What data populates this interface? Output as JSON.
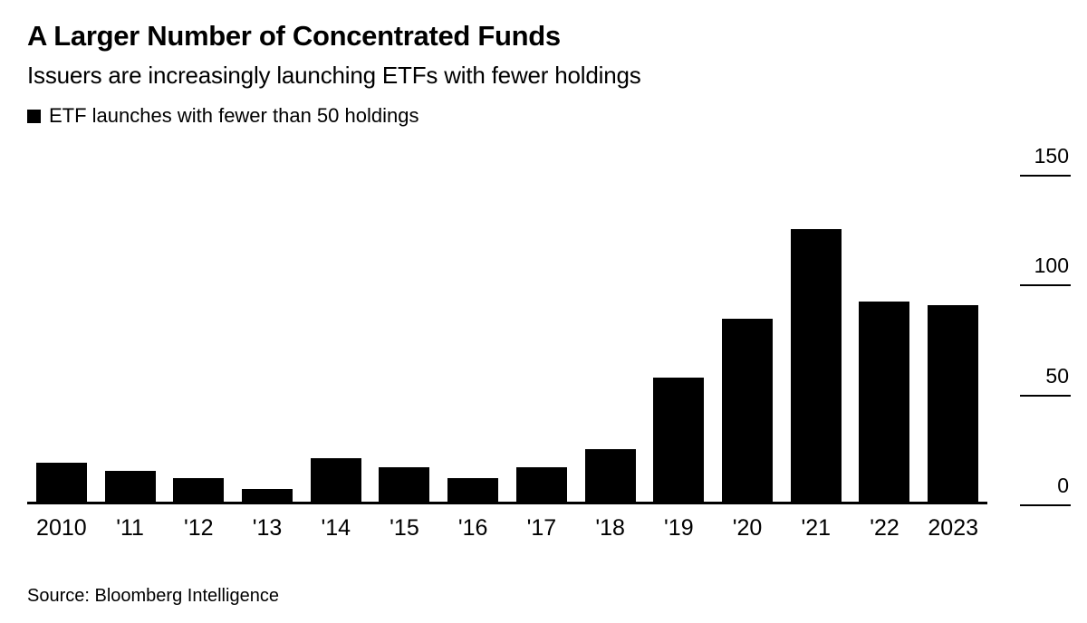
{
  "header": {
    "title": "A Larger Number of Concentrated Funds",
    "subtitle": "Issuers are increasingly launching ETFs with fewer holdings"
  },
  "legend": {
    "label": "ETF launches with fewer than 50 holdings"
  },
  "source": "Source: Bloomberg Intelligence",
  "colors": {
    "bar": "#000000",
    "text": "#000000",
    "background": "#ffffff"
  },
  "chart_data": {
    "type": "bar",
    "title": "A Larger Number of Concentrated Funds",
    "subtitle": "Issuers are increasingly launching ETFs with fewer holdings",
    "series_name": "ETF launches with fewer than 50 holdings",
    "categories": [
      "2010",
      "'11",
      "'12",
      "'13",
      "'14",
      "'15",
      "'16",
      "'17",
      "'18",
      "'19",
      "'20",
      "'21",
      "'22",
      "2023"
    ],
    "values": [
      18,
      14,
      11,
      6,
      20,
      16,
      11,
      16,
      24,
      57,
      84,
      125,
      92,
      90
    ],
    "xlabel": "",
    "ylabel": "",
    "ylim": [
      0,
      150
    ],
    "yticks": [
      150,
      100,
      50,
      0
    ],
    "legend_position": "top-left",
    "grid": "right-side tick dashes only",
    "bar_color": "#000000",
    "source": "Source: Bloomberg Intelligence"
  }
}
